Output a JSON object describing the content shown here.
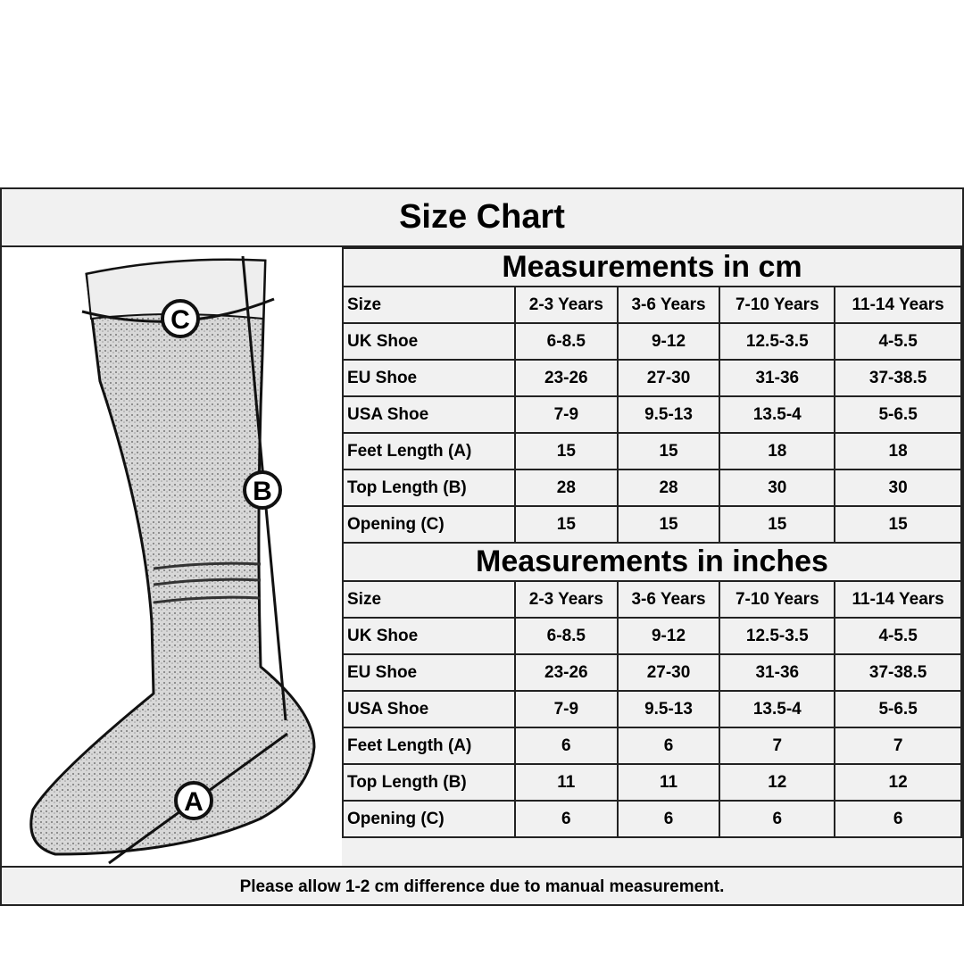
{
  "title": "Size Chart",
  "columns": [
    "Size",
    "2-3 Years",
    "3-6 Years",
    "7-10 Years",
    "11-14 Years"
  ],
  "sections": [
    {
      "heading": "Measurements in cm",
      "rows": [
        {
          "label": "UK Shoe",
          "values": [
            "6-8.5",
            "9-12",
            "12.5-3.5",
            "4-5.5"
          ]
        },
        {
          "label": "EU Shoe",
          "values": [
            "23-26",
            "27-30",
            "31-36",
            "37-38.5"
          ]
        },
        {
          "label": "USA Shoe",
          "values": [
            "7-9",
            "9.5-13",
            "13.5-4",
            "5-6.5"
          ]
        },
        {
          "label": "Feet Length (A)",
          "values": [
            "15",
            "15",
            "18",
            "18"
          ]
        },
        {
          "label": "Top Length (B)",
          "values": [
            "28",
            "28",
            "30",
            "30"
          ]
        },
        {
          "label": "Opening (C)",
          "values": [
            "15",
            "15",
            "15",
            "15"
          ]
        }
      ]
    },
    {
      "heading": "Measurements in inches",
      "rows": [
        {
          "label": "UK Shoe",
          "values": [
            "6-8.5",
            "9-12",
            "12.5-3.5",
            "4-5.5"
          ]
        },
        {
          "label": "EU Shoe",
          "values": [
            "23-26",
            "27-30",
            "31-36",
            "37-38.5"
          ]
        },
        {
          "label": "USA Shoe",
          "values": [
            "7-9",
            "9.5-13",
            "13.5-4",
            "5-6.5"
          ]
        },
        {
          "label": "Feet Length (A)",
          "values": [
            "6",
            "6",
            "7",
            "7"
          ]
        },
        {
          "label": "Top Length (B)",
          "values": [
            "11",
            "11",
            "12",
            "12"
          ]
        },
        {
          "label": "Opening (C)",
          "values": [
            "6",
            "6",
            "6",
            "6"
          ]
        }
      ]
    }
  ],
  "markers": {
    "a": "A",
    "b": "B",
    "c": "C"
  },
  "footer": "Please allow 1-2 cm difference due to manual measurement."
}
